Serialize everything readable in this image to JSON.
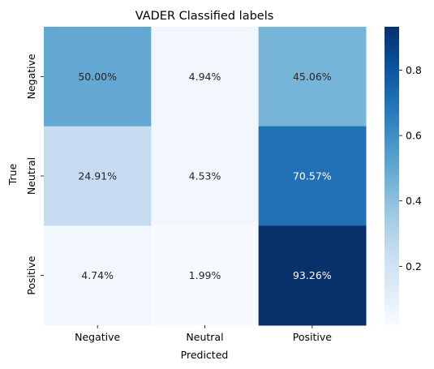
{
  "chart_data": {
    "type": "heatmap",
    "title": "VADER Classified labels",
    "xlabel": "Predicted",
    "ylabel": "True",
    "x_categories": [
      "Negative",
      "Neutral",
      "Positive"
    ],
    "y_categories": [
      "Negative",
      "Neutral",
      "Positive"
    ],
    "values": [
      [
        0.5,
        0.0494,
        0.4506
      ],
      [
        0.2491,
        0.0453,
        0.7057
      ],
      [
        0.0474,
        0.0199,
        0.9326
      ]
    ],
    "cell_labels": [
      [
        "50.00%",
        "4.94%",
        "45.06%"
      ],
      [
        "24.91%",
        "4.53%",
        "70.57%"
      ],
      [
        "4.74%",
        "1.99%",
        "93.26%"
      ]
    ],
    "colormap": "Blues",
    "color_range": [
      0.0199,
      0.9326
    ],
    "colorbar_ticks": [
      0.2,
      0.4,
      0.6,
      0.8
    ],
    "colorbar_tick_labels": [
      "0.2",
      "0.4",
      "0.6",
      "0.8"
    ]
  }
}
